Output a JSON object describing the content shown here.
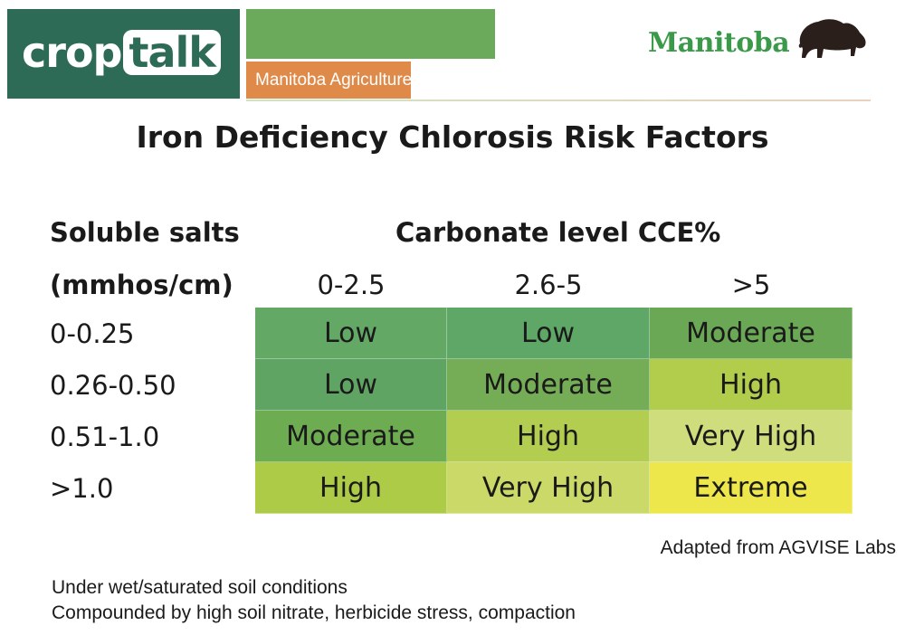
{
  "header": {
    "logo_part1": "crop",
    "logo_part2": "talk",
    "ministry": "Manitoba Agriculture",
    "province": "Manitoba"
  },
  "title": "Iron Deficiency Chlorosis Risk Factors",
  "table": {
    "row_header_line1": "Soluble salts",
    "row_header_line2": "(mmhos/cm)",
    "col_header": "Carbonate level CCE%",
    "columns": [
      "0-2.5",
      "2.6-5",
      ">5"
    ],
    "rows": [
      {
        "label": "0-0.25",
        "cells": [
          "Low",
          "Low",
          "Moderate"
        ]
      },
      {
        "label": "0.26-0.50",
        "cells": [
          "Low",
          "Moderate",
          "High"
        ]
      },
      {
        "label": "0.51-1.0",
        "cells": [
          "Moderate",
          "High",
          "Very High"
        ]
      },
      {
        "label": ">1.0",
        "cells": [
          "High",
          "Very High",
          "Extreme"
        ]
      }
    ],
    "colors": {
      "Low": "#5fa864",
      "Moderate": "#6aa956",
      "High": "#b3cd4e",
      "Very High": "#cfdc78",
      "Extreme": "#ece74a"
    },
    "cell_colors": [
      [
        "#63a865",
        "#5ea766",
        "#6aa855"
      ],
      [
        "#5fa462",
        "#74ad55",
        "#b2cc4b"
      ],
      [
        "#6eac52",
        "#b2cd4f",
        "#d0dd7c"
      ],
      [
        "#aecb48",
        "#cad967",
        "#ede74c"
      ]
    ]
  },
  "source": "Adapted from AGVISE Labs",
  "notes": [
    "Under wet/saturated soil conditions",
    "Compounded by high soil nitrate, herbicide stress, compaction"
  ]
}
